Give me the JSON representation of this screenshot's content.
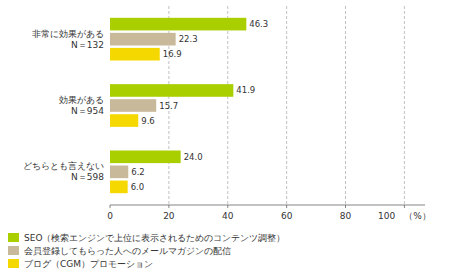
{
  "chart_data": {
    "type": "bar",
    "orientation": "horizontal",
    "categories": [
      "非常に効果がある\nN＝132",
      "効果がある\nN＝954",
      "どちらとも言えない\nN＝598"
    ],
    "series": [
      {
        "name": "SEO（検索エンジンで上位に表示されるためのコンテンツ調整）",
        "color": "#aacf00",
        "values": [
          46.3,
          41.9,
          24.0
        ],
        "value_labels": [
          "46.3",
          "41.9",
          "24.0"
        ]
      },
      {
        "name": "会員登録してもらった人へのメールマガジンの配信",
        "color": "#c8b99a",
        "values": [
          22.3,
          15.7,
          6.2
        ],
        "value_labels": [
          "22.3",
          "15.7",
          "6.2"
        ]
      },
      {
        "name": "ブログ（CGM）プロモーション",
        "color": "#f5d800",
        "values": [
          16.9,
          9.6,
          6.0
        ],
        "value_labels": [
          "16.9",
          "9.6",
          "6.0"
        ]
      }
    ],
    "xlim": [
      0,
      107
    ],
    "xticks": [
      0,
      20,
      40,
      60,
      80,
      {
        "value": 100,
        "label": "100　（%）"
      }
    ],
    "grid": true,
    "data_labels": true,
    "legend": "bottom"
  }
}
